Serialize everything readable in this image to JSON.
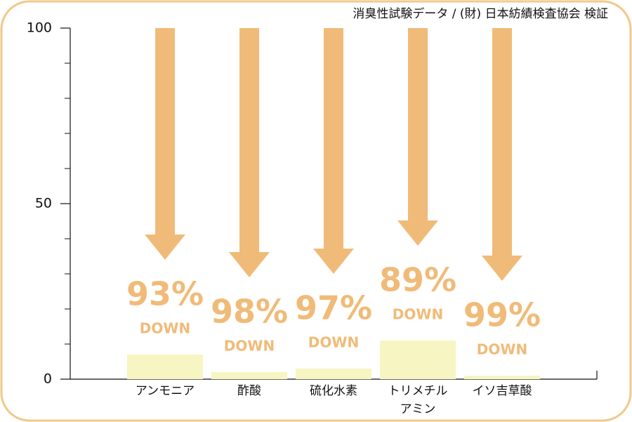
{
  "chart_data": {
    "type": "bar",
    "title": "消臭性試験データ / (財) 日本紡績検査協会 検証",
    "categories": [
      "アンモニア",
      "酢酸",
      "硫化水素",
      "トリメチルアミン",
      "イソ吉草酸"
    ],
    "values": [
      7,
      2,
      3,
      11,
      1
    ],
    "color": "#f7f5c2",
    "reduction_labels": [
      "93%",
      "98%",
      "97%",
      "89%",
      "99%"
    ],
    "down_text": "DOWN",
    "arrow_color": "#f0bb78",
    "ylim": [
      0,
      100
    ],
    "yticks": [
      0,
      50,
      100
    ],
    "minor_yticks": [
      10,
      20,
      30,
      40,
      60,
      70,
      80,
      90
    ]
  }
}
